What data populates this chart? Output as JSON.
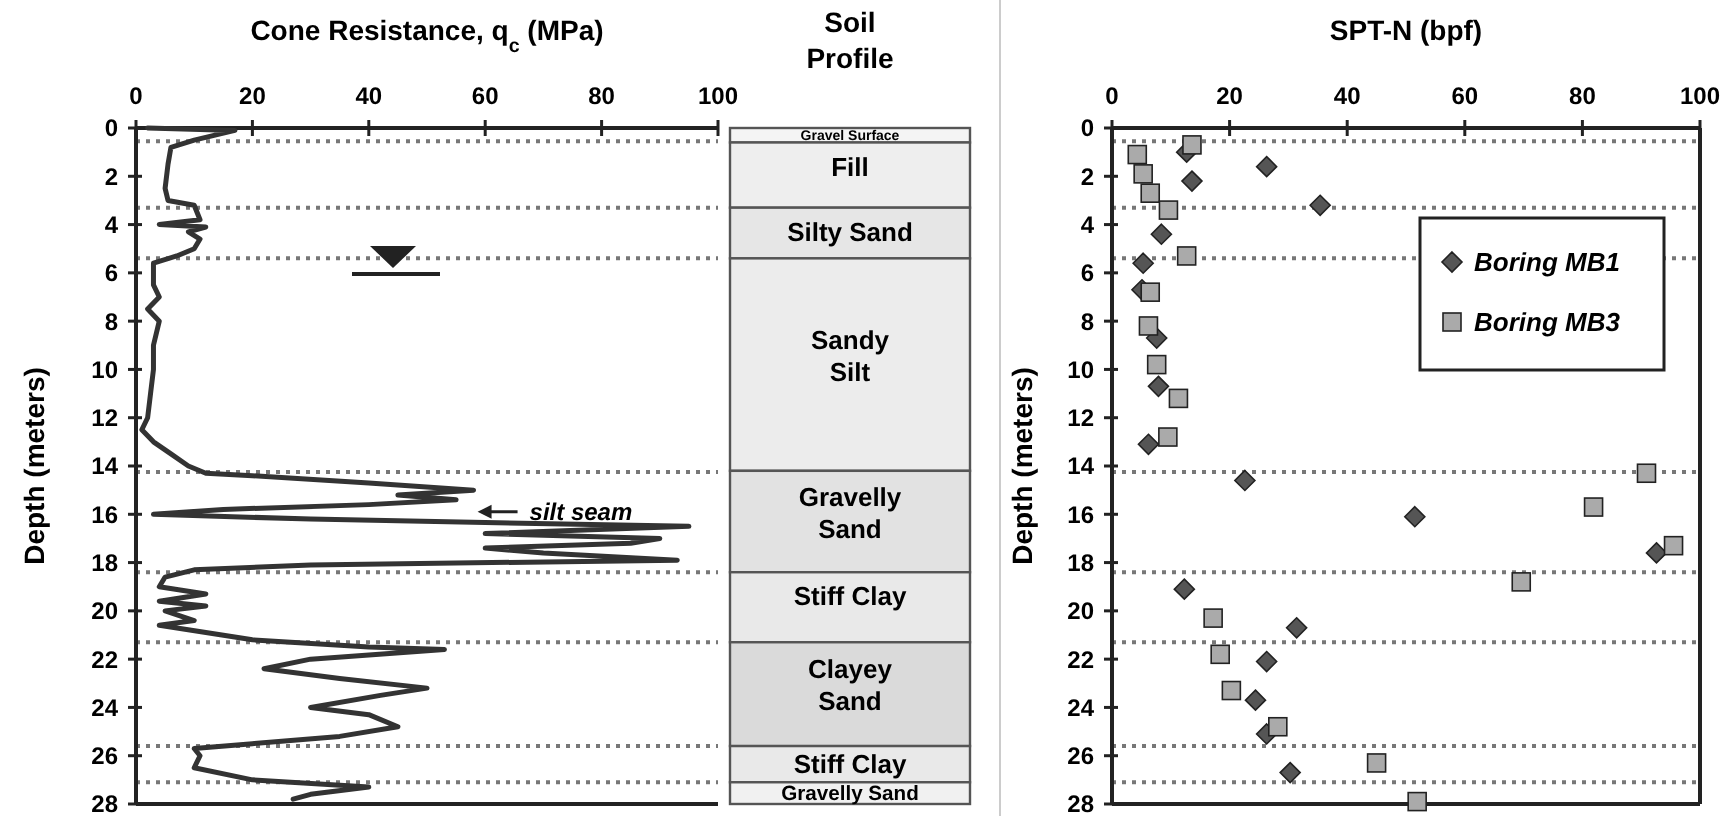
{
  "chart_data": [
    {
      "type": "line",
      "title": "Cone Resistance, q$_{c}$ (MPa)",
      "ylabel": "Depth (meters)",
      "xlim": [
        0,
        100
      ],
      "xticks": [
        0,
        20,
        40,
        60,
        80,
        100
      ],
      "ylim": [
        28,
        0
      ],
      "yticks": [
        0,
        2,
        4,
        6,
        8,
        10,
        12,
        14,
        16,
        18,
        20,
        22,
        24,
        26,
        28
      ],
      "grid": false,
      "legend": false,
      "marker": "none",
      "line_style": "solid",
      "series": [
        {
          "color": "#333333",
          "x": [
            2,
            17,
            10,
            6,
            5.5,
            5,
            5.5,
            10,
            11,
            4,
            12,
            9,
            11,
            10,
            7,
            3,
            3,
            4,
            2,
            4,
            3,
            3,
            2.5,
            2,
            1,
            3,
            6,
            9,
            12,
            20,
            40,
            58,
            45,
            55,
            40,
            15,
            3,
            30,
            95,
            60,
            90,
            85,
            60,
            70,
            93,
            30,
            10,
            5,
            4,
            12,
            4,
            12,
            5,
            10,
            4,
            12,
            20,
            40,
            53,
            30,
            22,
            35,
            50,
            42,
            30,
            40,
            45,
            35,
            20,
            10,
            11,
            10,
            20,
            40,
            30,
            27
          ],
          "values": [
            0,
            0.1,
            0.5,
            0.8,
            1.5,
            2.5,
            3.0,
            3.2,
            3.8,
            4.0,
            4.1,
            4.3,
            4.6,
            5.0,
            5.3,
            5.6,
            6.5,
            7,
            7.5,
            8,
            9,
            10,
            11,
            12,
            12.5,
            13,
            13.5,
            14,
            14.3,
            14.4,
            14.7,
            15.0,
            15.2,
            15.4,
            15.6,
            15.8,
            16.0,
            16.2,
            16.5,
            16.8,
            17.0,
            17.2,
            17.4,
            17.6,
            17.9,
            18.1,
            18.3,
            18.6,
            19.0,
            19.3,
            19.6,
            19.8,
            20.0,
            20.4,
            20.6,
            20.9,
            21.2,
            21.5,
            21.6,
            22.0,
            22.4,
            22.8,
            23.2,
            23.5,
            24.0,
            24.3,
            24.8,
            25.2,
            25.5,
            25.7,
            26.0,
            26.5,
            27.0,
            27.3,
            27.6,
            27.8
          ]
        }
      ],
      "ref_lines": [
        {
          "axis": "y",
          "value": 0.55,
          "line_style": "dotted"
        },
        {
          "axis": "y",
          "value": 3.3,
          "line_style": "dotted"
        },
        {
          "axis": "y",
          "value": 5.4,
          "line_style": "dotted"
        },
        {
          "axis": "y",
          "value": 14.25,
          "line_style": "dotted"
        },
        {
          "axis": "y",
          "value": 18.4,
          "line_style": "dotted"
        },
        {
          "axis": "y",
          "value": 21.3,
          "line_style": "dotted"
        },
        {
          "axis": "y",
          "value": 25.6,
          "line_style": "dotted"
        },
        {
          "axis": "y",
          "value": 27.1,
          "line_style": "dotted"
        }
      ],
      "annotations": [
        {
          "text": "silt seam",
          "x": 58,
          "y": 15.9
        }
      ]
    },
    {
      "type": "bar",
      "title": "Soil Profile",
      "stacked": true,
      "categories": [
        null
      ],
      "ylim": [
        28,
        0
      ],
      "legend": false,
      "series": [
        {
          "name": "Gravel Surface",
          "color": "#f4f4f4",
          "values": [
            0.6
          ]
        },
        {
          "name": "Fill",
          "color": "#eeeeee",
          "values": [
            2.7
          ]
        },
        {
          "name": "Silty Sand",
          "color": "#e6e6e6",
          "values": [
            2.1
          ]
        },
        {
          "name": "Sandy Silt",
          "color": "#ececec",
          "values": [
            8.8
          ]
        },
        {
          "name": "Gravelly Sand",
          "color": "#e2e2e2",
          "values": [
            4.2
          ]
        },
        {
          "name": "Stiff Clay",
          "color": "#e9e9e9",
          "values": [
            2.9
          ]
        },
        {
          "name": "Clayey Sand",
          "color": "#dadada",
          "values": [
            4.3
          ]
        },
        {
          "name": "Stiff Clay",
          "color": "#e9e9e9",
          "values": [
            1.5
          ]
        },
        {
          "name": "Gravelly Sand",
          "color": "#f1f1f1",
          "values": [
            0.9
          ]
        }
      ]
    },
    {
      "type": "scatter",
      "title": "SPT-N (bpf)",
      "ylabel": "Depth (meters)",
      "xlim": [
        0,
        100
      ],
      "xticks": [
        0,
        20,
        40,
        60,
        80,
        100
      ],
      "ylim": [
        28,
        0
      ],
      "yticks": [
        0,
        2,
        4,
        6,
        8,
        10,
        12,
        14,
        16,
        18,
        20,
        22,
        24,
        26,
        28
      ],
      "grid": false,
      "legend": "top right",
      "series": [
        {
          "name": "Boring MB1",
          "color": "#555555",
          "marker": "diamond",
          "x": [
            12.7,
            26.3,
            13.6,
            35.4,
            8.4,
            5.3,
            5.1,
            7.6,
            7.9,
            6.2,
            22.6,
            51.5,
            92.6,
            12.3,
            31.4,
            26.3,
            24.4,
            26.3,
            30.3
          ],
          "values": [
            1.0,
            1.6,
            2.2,
            3.2,
            4.4,
            5.6,
            6.7,
            8.7,
            10.7,
            13.1,
            14.6,
            16.1,
            17.6,
            19.1,
            20.7,
            22.1,
            23.7,
            25.1,
            26.7
          ]
        },
        {
          "name": "Boring MB3",
          "color": "#aaaaaa",
          "marker": "square",
          "x": [
            13.6,
            4.3,
            5.3,
            6.5,
            9.6,
            12.7,
            6.5,
            6.2,
            7.6,
            11.3,
            9.5,
            90.9,
            81.9,
            95.5,
            69.6,
            17.2,
            18.4,
            20.3,
            28.2,
            45,
            51.9
          ],
          "values": [
            0.7,
            1.1,
            1.9,
            2.7,
            3.4,
            5.3,
            6.8,
            8.2,
            9.8,
            11.2,
            12.8,
            14.3,
            15.7,
            17.3,
            18.8,
            20.3,
            21.8,
            23.3,
            24.8,
            26.3,
            27.9
          ]
        }
      ],
      "ref_lines": [
        {
          "axis": "y",
          "value": 0.55,
          "line_style": "dotted"
        },
        {
          "axis": "y",
          "value": 3.3,
          "line_style": "dotted"
        },
        {
          "axis": "y",
          "value": 5.4,
          "line_style": "dotted"
        },
        {
          "axis": "y",
          "value": 14.25,
          "line_style": "dotted"
        },
        {
          "axis": "y",
          "value": 18.4,
          "line_style": "dotted"
        },
        {
          "axis": "y",
          "value": 21.3,
          "line_style": "dotted"
        },
        {
          "axis": "y",
          "value": 25.6,
          "line_style": "dotted"
        },
        {
          "axis": "y",
          "value": 27.1,
          "line_style": "dotted"
        }
      ]
    }
  ]
}
